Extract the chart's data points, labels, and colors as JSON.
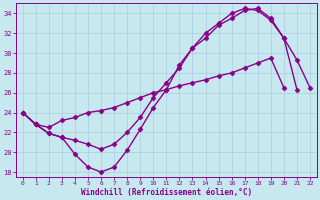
{
  "xlabel": "Windchill (Refroidissement éolien,°C)",
  "bg_color": "#c8e8f0",
  "line_color": "#880088",
  "marker": "D",
  "markersize": 2.5,
  "linewidth": 1.0,
  "xlim": [
    -0.5,
    22.5
  ],
  "ylim": [
    17.5,
    35.0
  ],
  "yticks": [
    18,
    20,
    22,
    24,
    26,
    28,
    30,
    32,
    34
  ],
  "xticks": [
    0,
    1,
    2,
    3,
    4,
    5,
    6,
    7,
    8,
    9,
    10,
    11,
    12,
    13,
    14,
    15,
    16,
    17,
    18,
    19,
    20,
    21,
    22
  ],
  "series": [
    {
      "x": [
        0,
        1,
        2,
        3,
        4,
        5,
        6,
        7,
        8,
        9,
        10,
        11,
        12,
        13,
        14,
        15,
        16,
        17,
        18,
        19,
        20,
        21,
        22
      ],
      "y": [
        24.0,
        22.8,
        21.9,
        21.5,
        19.8,
        18.5,
        18.0,
        18.5,
        20.2,
        22.3,
        24.5,
        26.3,
        28.8,
        30.5,
        31.5,
        32.8,
        33.5,
        34.3,
        34.5,
        33.5,
        31.5,
        29.3,
        26.5
      ]
    },
    {
      "x": [
        0,
        1,
        2,
        3,
        4,
        5,
        6,
        7,
        8,
        9,
        10,
        11,
        12,
        13,
        14,
        15,
        16,
        17,
        18,
        19,
        20
      ],
      "y": [
        24.0,
        22.8,
        22.5,
        23.2,
        23.5,
        24.0,
        24.2,
        24.5,
        25.0,
        25.5,
        26.0,
        26.3,
        26.7,
        27.0,
        27.3,
        27.7,
        28.0,
        28.5,
        29.0,
        29.5,
        26.5
      ]
    },
    {
      "x": [
        0,
        1,
        2,
        3,
        4,
        5,
        6,
        7,
        8,
        9,
        10,
        11,
        12,
        13,
        14,
        15,
        16,
        17,
        18,
        19,
        20,
        21
      ],
      "y": [
        24.0,
        22.8,
        21.9,
        21.5,
        21.2,
        20.8,
        20.3,
        20.8,
        22.0,
        23.5,
        25.5,
        27.0,
        28.5,
        30.5,
        32.0,
        33.0,
        34.0,
        34.5,
        34.3,
        33.3,
        31.5,
        26.3
      ]
    }
  ],
  "grid_color": "#aaccdd",
  "grid_linewidth": 0.5,
  "spine_color": "#880088",
  "tick_labelsize": 5,
  "xlabel_fontsize": 5.5
}
